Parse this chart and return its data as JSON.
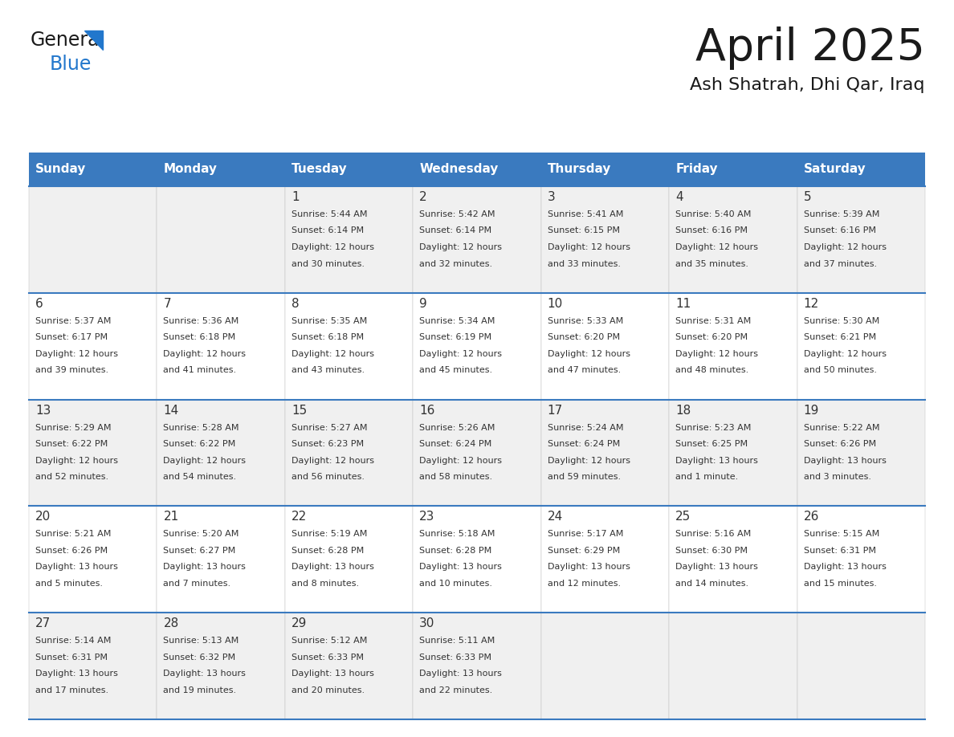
{
  "title": "April 2025",
  "subtitle": "Ash Shatrah, Dhi Qar, Iraq",
  "days_of_week": [
    "Sunday",
    "Monday",
    "Tuesday",
    "Wednesday",
    "Thursday",
    "Friday",
    "Saturday"
  ],
  "header_bg": "#3a7abf",
  "header_text": "#ffffff",
  "row_bg_even": "#f0f0f0",
  "row_bg_odd": "#ffffff",
  "divider_color": "#3a7abf",
  "text_color": "#333333",
  "logo_text_color": "#222222",
  "logo_blue_color": "#2277cc",
  "cal_data": [
    [
      {
        "day": "",
        "sunrise": "",
        "sunset": "",
        "daylight": ""
      },
      {
        "day": "",
        "sunrise": "",
        "sunset": "",
        "daylight": ""
      },
      {
        "day": "1",
        "sunrise": "Sunrise: 5:44 AM",
        "sunset": "Sunset: 6:14 PM",
        "daylight": "Daylight: 12 hours\nand 30 minutes."
      },
      {
        "day": "2",
        "sunrise": "Sunrise: 5:42 AM",
        "sunset": "Sunset: 6:14 PM",
        "daylight": "Daylight: 12 hours\nand 32 minutes."
      },
      {
        "day": "3",
        "sunrise": "Sunrise: 5:41 AM",
        "sunset": "Sunset: 6:15 PM",
        "daylight": "Daylight: 12 hours\nand 33 minutes."
      },
      {
        "day": "4",
        "sunrise": "Sunrise: 5:40 AM",
        "sunset": "Sunset: 6:16 PM",
        "daylight": "Daylight: 12 hours\nand 35 minutes."
      },
      {
        "day": "5",
        "sunrise": "Sunrise: 5:39 AM",
        "sunset": "Sunset: 6:16 PM",
        "daylight": "Daylight: 12 hours\nand 37 minutes."
      }
    ],
    [
      {
        "day": "6",
        "sunrise": "Sunrise: 5:37 AM",
        "sunset": "Sunset: 6:17 PM",
        "daylight": "Daylight: 12 hours\nand 39 minutes."
      },
      {
        "day": "7",
        "sunrise": "Sunrise: 5:36 AM",
        "sunset": "Sunset: 6:18 PM",
        "daylight": "Daylight: 12 hours\nand 41 minutes."
      },
      {
        "day": "8",
        "sunrise": "Sunrise: 5:35 AM",
        "sunset": "Sunset: 6:18 PM",
        "daylight": "Daylight: 12 hours\nand 43 minutes."
      },
      {
        "day": "9",
        "sunrise": "Sunrise: 5:34 AM",
        "sunset": "Sunset: 6:19 PM",
        "daylight": "Daylight: 12 hours\nand 45 minutes."
      },
      {
        "day": "10",
        "sunrise": "Sunrise: 5:33 AM",
        "sunset": "Sunset: 6:20 PM",
        "daylight": "Daylight: 12 hours\nand 47 minutes."
      },
      {
        "day": "11",
        "sunrise": "Sunrise: 5:31 AM",
        "sunset": "Sunset: 6:20 PM",
        "daylight": "Daylight: 12 hours\nand 48 minutes."
      },
      {
        "day": "12",
        "sunrise": "Sunrise: 5:30 AM",
        "sunset": "Sunset: 6:21 PM",
        "daylight": "Daylight: 12 hours\nand 50 minutes."
      }
    ],
    [
      {
        "day": "13",
        "sunrise": "Sunrise: 5:29 AM",
        "sunset": "Sunset: 6:22 PM",
        "daylight": "Daylight: 12 hours\nand 52 minutes."
      },
      {
        "day": "14",
        "sunrise": "Sunrise: 5:28 AM",
        "sunset": "Sunset: 6:22 PM",
        "daylight": "Daylight: 12 hours\nand 54 minutes."
      },
      {
        "day": "15",
        "sunrise": "Sunrise: 5:27 AM",
        "sunset": "Sunset: 6:23 PM",
        "daylight": "Daylight: 12 hours\nand 56 minutes."
      },
      {
        "day": "16",
        "sunrise": "Sunrise: 5:26 AM",
        "sunset": "Sunset: 6:24 PM",
        "daylight": "Daylight: 12 hours\nand 58 minutes."
      },
      {
        "day": "17",
        "sunrise": "Sunrise: 5:24 AM",
        "sunset": "Sunset: 6:24 PM",
        "daylight": "Daylight: 12 hours\nand 59 minutes."
      },
      {
        "day": "18",
        "sunrise": "Sunrise: 5:23 AM",
        "sunset": "Sunset: 6:25 PM",
        "daylight": "Daylight: 13 hours\nand 1 minute."
      },
      {
        "day": "19",
        "sunrise": "Sunrise: 5:22 AM",
        "sunset": "Sunset: 6:26 PM",
        "daylight": "Daylight: 13 hours\nand 3 minutes."
      }
    ],
    [
      {
        "day": "20",
        "sunrise": "Sunrise: 5:21 AM",
        "sunset": "Sunset: 6:26 PM",
        "daylight": "Daylight: 13 hours\nand 5 minutes."
      },
      {
        "day": "21",
        "sunrise": "Sunrise: 5:20 AM",
        "sunset": "Sunset: 6:27 PM",
        "daylight": "Daylight: 13 hours\nand 7 minutes."
      },
      {
        "day": "22",
        "sunrise": "Sunrise: 5:19 AM",
        "sunset": "Sunset: 6:28 PM",
        "daylight": "Daylight: 13 hours\nand 8 minutes."
      },
      {
        "day": "23",
        "sunrise": "Sunrise: 5:18 AM",
        "sunset": "Sunset: 6:28 PM",
        "daylight": "Daylight: 13 hours\nand 10 minutes."
      },
      {
        "day": "24",
        "sunrise": "Sunrise: 5:17 AM",
        "sunset": "Sunset: 6:29 PM",
        "daylight": "Daylight: 13 hours\nand 12 minutes."
      },
      {
        "day": "25",
        "sunrise": "Sunrise: 5:16 AM",
        "sunset": "Sunset: 6:30 PM",
        "daylight": "Daylight: 13 hours\nand 14 minutes."
      },
      {
        "day": "26",
        "sunrise": "Sunrise: 5:15 AM",
        "sunset": "Sunset: 6:31 PM",
        "daylight": "Daylight: 13 hours\nand 15 minutes."
      }
    ],
    [
      {
        "day": "27",
        "sunrise": "Sunrise: 5:14 AM",
        "sunset": "Sunset: 6:31 PM",
        "daylight": "Daylight: 13 hours\nand 17 minutes."
      },
      {
        "day": "28",
        "sunrise": "Sunrise: 5:13 AM",
        "sunset": "Sunset: 6:32 PM",
        "daylight": "Daylight: 13 hours\nand 19 minutes."
      },
      {
        "day": "29",
        "sunrise": "Sunrise: 5:12 AM",
        "sunset": "Sunset: 6:33 PM",
        "daylight": "Daylight: 13 hours\nand 20 minutes."
      },
      {
        "day": "30",
        "sunrise": "Sunrise: 5:11 AM",
        "sunset": "Sunset: 6:33 PM",
        "daylight": "Daylight: 13 hours\nand 22 minutes."
      },
      {
        "day": "",
        "sunrise": "",
        "sunset": "",
        "daylight": ""
      },
      {
        "day": "",
        "sunrise": "",
        "sunset": "",
        "daylight": ""
      },
      {
        "day": "",
        "sunrise": "",
        "sunset": "",
        "daylight": ""
      }
    ]
  ]
}
